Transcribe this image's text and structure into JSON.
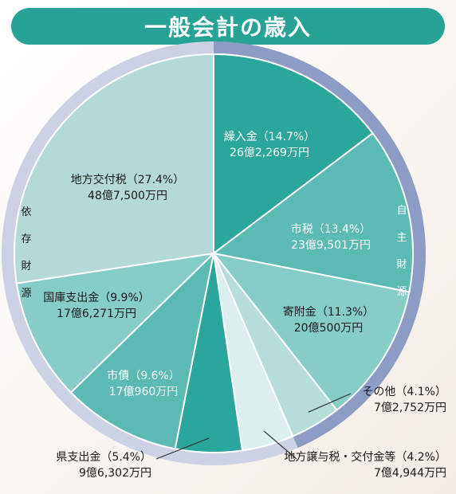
{
  "title": "一般会計の歳入",
  "colors": {
    "title_bg": "#27a396",
    "ring_self": "#8c9cc4",
    "ring_dependent": "#ccd2e4",
    "leader_line": "#333333"
  },
  "chart_data": {
    "type": "pie",
    "title": "一般会計の歳入",
    "start_angle_deg": 0,
    "direction": "clockwise",
    "slices": [
      {
        "label": "繰入金",
        "percent": 14.7,
        "amount": "26億2,269万円",
        "color": "#2aa69d",
        "text_color": "#ffffff",
        "group": "自主財源"
      },
      {
        "label": "市税",
        "percent": 13.4,
        "amount": "23億9,501万円",
        "color": "#5bbab3",
        "text_color": "#ffffff",
        "group": "自主財源"
      },
      {
        "label": "寄附金",
        "percent": 11.3,
        "amount": "20億500万円",
        "color": "#86ccc7",
        "text_color": "#1a1a1a",
        "group": "自主財源"
      },
      {
        "label": "その他",
        "percent": 4.1,
        "amount": "7億2,752万円",
        "color": "#b5deda",
        "text_color": "#1a1a1a",
        "group": "自主財源"
      },
      {
        "label": "地方譲与税・交付金等",
        "percent": 4.2,
        "amount": "7億4,944万円",
        "color": "#dceeed",
        "text_color": "#1a1a1a",
        "group": "依存財源"
      },
      {
        "label": "県支出金",
        "percent": 5.4,
        "amount": "9億6,302万円",
        "color": "#2aa69d",
        "text_color": "#ffffff",
        "group": "依存財源"
      },
      {
        "label": "市債",
        "percent": 9.6,
        "amount": "17億960万円",
        "color": "#5bbab3",
        "text_color": "#ffffff",
        "group": "依存財源"
      },
      {
        "label": "国庫支出金",
        "percent": 9.9,
        "amount": "17億6,271万円",
        "color": "#86ccc7",
        "text_color": "#1a1a1a",
        "group": "依存財源"
      },
      {
        "label": "地方交付税",
        "percent": 27.4,
        "amount": "48億7,500万円",
        "color": "#b3dad7",
        "text_color": "#1a1a1a",
        "group": "依存財源"
      }
    ],
    "groups": [
      {
        "name": "自主財源",
        "chars": [
          "自",
          "主",
          "財",
          "源"
        ]
      },
      {
        "name": "依存財源",
        "chars": [
          "依",
          "存",
          "財",
          "源"
        ]
      }
    ]
  }
}
